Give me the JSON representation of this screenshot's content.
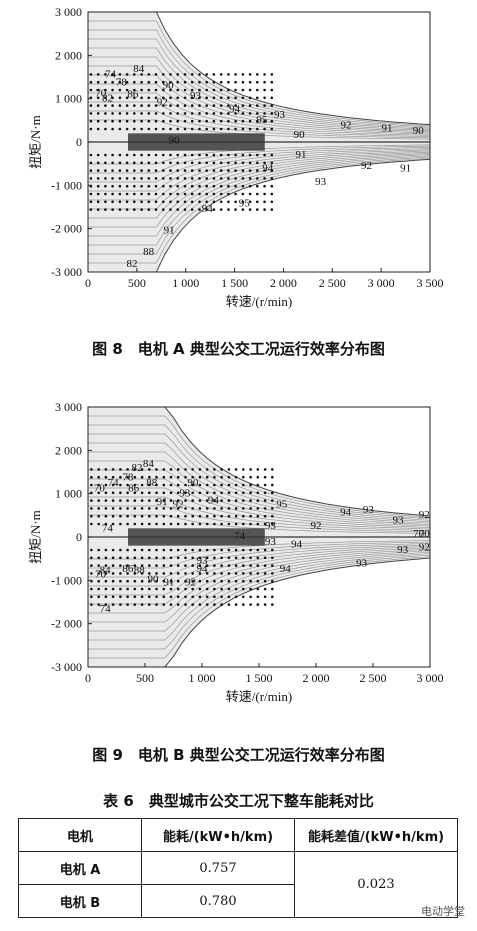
{
  "chart_data": [
    {
      "type": "contour",
      "xlabel": "转速/(r/min)",
      "ylabel": "扭矩/N·m",
      "xlim": [
        0,
        3500
      ],
      "ylim": [
        -3000,
        3000
      ],
      "xticks": [
        "0",
        "500",
        "1 000",
        "1 500",
        "2 000",
        "2 500",
        "3 000",
        "3 500"
      ],
      "yticks": [
        "3 000",
        "2 000",
        "1 000",
        "0",
        "-1 000",
        "-2 000",
        "-3 000"
      ],
      "contour_labels": [
        {
          "text": "84",
          "x": 520,
          "y": 2600
        },
        {
          "text": "74",
          "x": 230,
          "y": 2400
        },
        {
          "text": "78",
          "x": 340,
          "y": 2100
        },
        {
          "text": "90",
          "x": 820,
          "y": 2000
        },
        {
          "text": "70",
          "x": 130,
          "y": 1700
        },
        {
          "text": "82",
          "x": 200,
          "y": 1500
        },
        {
          "text": "86",
          "x": 460,
          "y": 1650
        },
        {
          "text": "93",
          "x": 1100,
          "y": 1600
        },
        {
          "text": "92",
          "x": 760,
          "y": 1350
        },
        {
          "text": "94",
          "x": 1500,
          "y": 1100
        },
        {
          "text": "93",
          "x": 1960,
          "y": 900
        },
        {
          "text": "95",
          "x": 1780,
          "y": 700
        },
        {
          "text": "92",
          "x": 2640,
          "y": 500
        },
        {
          "text": "91",
          "x": 3060,
          "y": 400
        },
        {
          "text": "90",
          "x": 3380,
          "y": 300
        },
        {
          "text": "90",
          "x": 2160,
          "y": 150
        },
        {
          "text": "90",
          "x": 880,
          "y": -50
        },
        {
          "text": "91",
          "x": 2180,
          "y": -600
        },
        {
          "text": "94",
          "x": 1840,
          "y": -1100
        },
        {
          "text": "92",
          "x": 2850,
          "y": -1000
        },
        {
          "text": "91",
          "x": 3250,
          "y": -1100
        },
        {
          "text": "93",
          "x": 2380,
          "y": -1600
        },
        {
          "text": "95",
          "x": 1600,
          "y": -2400
        },
        {
          "text": "94",
          "x": 1220,
          "y": -2600
        },
        {
          "text": "91",
          "x": 830,
          "y": -3400
        },
        {
          "text": "88",
          "x": 620,
          "y": -4200
        },
        {
          "text": "82",
          "x": 450,
          "y": -4650
        }
      ]
    },
    {
      "type": "contour",
      "xlabel": "转速/(r/min)",
      "ylabel": "扭矩/N·m",
      "xlim": [
        0,
        3000
      ],
      "ylim": [
        -3000,
        3000
      ],
      "xticks": [
        "0",
        "500",
        "1 000",
        "1 500",
        "2 000",
        "2 500",
        "3 000"
      ],
      "yticks": [
        "3 000",
        "2 000",
        "1 000",
        "0",
        "-1 000",
        "-2 000",
        "-3 000"
      ],
      "contour_labels": [
        {
          "text": "84",
          "x": 530,
          "y": 2600
        },
        {
          "text": "82",
          "x": 430,
          "y": 2450
        },
        {
          "text": "78",
          "x": 350,
          "y": 2100
        },
        {
          "text": "74",
          "x": 220,
          "y": 1900
        },
        {
          "text": "70",
          "x": 100,
          "y": 1700
        },
        {
          "text": "88",
          "x": 560,
          "y": 1900
        },
        {
          "text": "90",
          "x": 920,
          "y": 1900
        },
        {
          "text": "86",
          "x": 400,
          "y": 1700
        },
        {
          "text": "93",
          "x": 850,
          "y": 1500
        },
        {
          "text": "91",
          "x": 650,
          "y": 1200
        },
        {
          "text": "92",
          "x": 790,
          "y": 1100
        },
        {
          "text": "94",
          "x": 1100,
          "y": 1250
        },
        {
          "text": "95",
          "x": 1700,
          "y": 1100
        },
        {
          "text": "93",
          "x": 2460,
          "y": 900
        },
        {
          "text": "94",
          "x": 2260,
          "y": 800
        },
        {
          "text": "92",
          "x": 3030,
          "y": 700
        },
        {
          "text": "93",
          "x": 2720,
          "y": 500
        },
        {
          "text": "74",
          "x": 170,
          "y": 200
        },
        {
          "text": "70",
          "x": 2900,
          "y": 0
        },
        {
          "text": "70",
          "x": 3280,
          "y": 0
        },
        {
          "text": "93",
          "x": 1600,
          "y": 300
        },
        {
          "text": "92",
          "x": 2000,
          "y": 300
        },
        {
          "text": "74",
          "x": 1330,
          "y": -100
        },
        {
          "text": "93",
          "x": 1600,
          "y": -300
        },
        {
          "text": "94",
          "x": 1830,
          "y": -400
        },
        {
          "text": "92",
          "x": 3250,
          "y": -500
        },
        {
          "text": "93",
          "x": 2760,
          "y": -600
        },
        {
          "text": "93",
          "x": 2400,
          "y": -1100
        },
        {
          "text": "94",
          "x": 1730,
          "y": -1300
        },
        {
          "text": "93",
          "x": 1000,
          "y": -1000
        },
        {
          "text": "94",
          "x": 1000,
          "y": -1300
        },
        {
          "text": "86",
          "x": 350,
          "y": -1300
        },
        {
          "text": "88",
          "x": 450,
          "y": -1350
        },
        {
          "text": "90",
          "x": 570,
          "y": -1700
        },
        {
          "text": "91",
          "x": 710,
          "y": -1800
        },
        {
          "text": "92",
          "x": 900,
          "y": -1800
        },
        {
          "text": "84",
          "x": 150,
          "y": -1350
        },
        {
          "text": "74",
          "x": 150,
          "y": -2800
        },
        {
          "text": "70",
          "x": 110,
          "y": -1500
        }
      ]
    }
  ],
  "captions": {
    "fig8": "图 8　电机 A 典型公交工况运行效率分布图",
    "fig9": "图 9　电机 B 典型公交工况运行效率分布图"
  },
  "table": {
    "title": "表 6　典型城市公交工况下整车能耗对比",
    "headers": [
      "电机",
      "能耗/(kW•h/km)",
      "能耗差值/(kW•h/km)"
    ],
    "rows": [
      {
        "motor": "电机 A",
        "value": "0.757"
      },
      {
        "motor": "电机 B",
        "value": "0.780"
      }
    ],
    "diff": "0.023"
  },
  "watermark": "电动学堂"
}
